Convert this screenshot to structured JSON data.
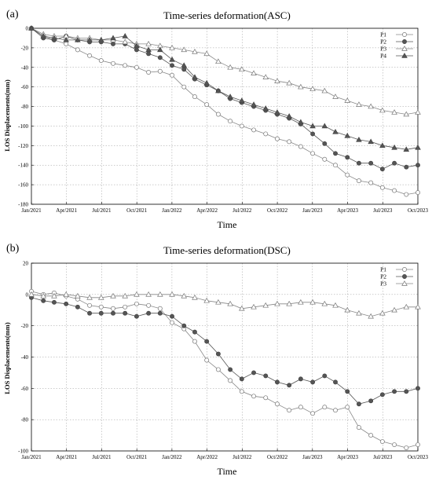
{
  "chart_data": [
    {
      "type": "line",
      "panel": "(a)",
      "title": "Time-series deformation(ASC)",
      "xlabel": "Time",
      "ylabel": "LOS Displacements(mm)",
      "ylim": [
        -180,
        0
      ],
      "yticks": [
        0,
        -20,
        -40,
        -60,
        -80,
        -100,
        -120,
        -140,
        -160,
        -180
      ],
      "xlim": [
        "2021-01-01",
        "2023-10-01"
      ],
      "xticks": [
        "Jan/2021",
        "Apr/2021",
        "Jul/2021",
        "Oct/2021",
        "Jan/2022",
        "Apr/2022",
        "Jul/2022",
        "Oct/2022",
        "Jan/2023",
        "Apr/2023",
        "Jul/2023",
        "Oct/2023"
      ],
      "grid": true,
      "legend": "top-right",
      "series": [
        {
          "name": "P1",
          "marker": "open-circle",
          "x": [
            "2021-01-01",
            "2021-02-01",
            "2021-03-01",
            "2021-04-01",
            "2021-05-01",
            "2021-06-01",
            "2021-07-01",
            "2021-08-01",
            "2021-09-01",
            "2021-10-01",
            "2021-11-01",
            "2021-12-01",
            "2022-01-01",
            "2022-02-01",
            "2022-03-01",
            "2022-04-01",
            "2022-05-01",
            "2022-06-01",
            "2022-07-01",
            "2022-08-01",
            "2022-09-01",
            "2022-10-01",
            "2022-11-01",
            "2022-12-01",
            "2023-01-01",
            "2023-02-01",
            "2023-03-01",
            "2023-04-01",
            "2023-05-01",
            "2023-06-01",
            "2023-07-01",
            "2023-08-01",
            "2023-09-01",
            "2023-10-01"
          ],
          "y": [
            0,
            -8,
            -12,
            -16,
            -22,
            -28,
            -33,
            -36,
            -38,
            -40,
            -45,
            -44,
            -48,
            -60,
            -70,
            -78,
            -88,
            -95,
            -100,
            -104,
            -108,
            -113,
            -116,
            -121,
            -128,
            -134,
            -140,
            -150,
            -156,
            -158,
            -163,
            -166,
            -170,
            -168
          ]
        },
        {
          "name": "P2",
          "marker": "filled-circle",
          "x": [
            "2021-01-01",
            "2021-02-01",
            "2021-03-01",
            "2021-04-01",
            "2021-05-01",
            "2021-06-01",
            "2021-07-01",
            "2021-08-01",
            "2021-09-01",
            "2021-10-01",
            "2021-11-01",
            "2021-12-01",
            "2022-01-01",
            "2022-02-01",
            "2022-03-01",
            "2022-04-01",
            "2022-05-01",
            "2022-06-01",
            "2022-07-01",
            "2022-08-01",
            "2022-09-01",
            "2022-10-01",
            "2022-11-01",
            "2022-12-01",
            "2023-01-01",
            "2023-02-01",
            "2023-03-01",
            "2023-04-01",
            "2023-05-01",
            "2023-06-01",
            "2023-07-01",
            "2023-08-01",
            "2023-09-01",
            "2023-10-01"
          ],
          "y": [
            0,
            -10,
            -12,
            -8,
            -12,
            -14,
            -14,
            -16,
            -16,
            -22,
            -26,
            -30,
            -38,
            -42,
            -52,
            -58,
            -64,
            -72,
            -76,
            -80,
            -84,
            -88,
            -92,
            -98,
            -108,
            -118,
            -128,
            -132,
            -138,
            -138,
            -144,
            -138,
            -142,
            -140
          ]
        },
        {
          "name": "P3",
          "marker": "open-triangle",
          "x": [
            "2021-01-01",
            "2021-02-01",
            "2021-03-01",
            "2021-04-01",
            "2021-05-01",
            "2021-06-01",
            "2021-07-01",
            "2021-08-01",
            "2021-09-01",
            "2021-10-01",
            "2021-11-01",
            "2021-12-01",
            "2022-01-01",
            "2022-02-01",
            "2022-03-01",
            "2022-04-01",
            "2022-05-01",
            "2022-06-01",
            "2022-07-01",
            "2022-08-01",
            "2022-09-01",
            "2022-10-01",
            "2022-11-01",
            "2022-12-01",
            "2023-01-01",
            "2023-02-01",
            "2023-03-01",
            "2023-04-01",
            "2023-05-01",
            "2023-06-01",
            "2023-07-01",
            "2023-08-01",
            "2023-09-01",
            "2023-10-01"
          ],
          "y": [
            0,
            -6,
            -8,
            -8,
            -10,
            -10,
            -12,
            -12,
            -14,
            -16,
            -16,
            -18,
            -20,
            -22,
            -24,
            -26,
            -34,
            -40,
            -42,
            -46,
            -50,
            -54,
            -56,
            -60,
            -62,
            -64,
            -70,
            -74,
            -78,
            -80,
            -84,
            -86,
            -88,
            -86
          ]
        },
        {
          "name": "P4",
          "marker": "filled-triangle",
          "x": [
            "2021-01-01",
            "2021-02-01",
            "2021-03-01",
            "2021-04-01",
            "2021-05-01",
            "2021-06-01",
            "2021-07-01",
            "2021-08-01",
            "2021-09-01",
            "2021-10-01",
            "2021-11-01",
            "2021-12-01",
            "2022-01-01",
            "2022-02-01",
            "2022-03-01",
            "2022-04-01",
            "2022-05-01",
            "2022-06-01",
            "2022-07-01",
            "2022-08-01",
            "2022-09-01",
            "2022-10-01",
            "2022-11-01",
            "2022-12-01",
            "2023-01-01",
            "2023-02-01",
            "2023-03-01",
            "2023-04-01",
            "2023-05-01",
            "2023-06-01",
            "2023-07-01",
            "2023-08-01",
            "2023-09-01",
            "2023-10-01"
          ],
          "y": [
            0,
            -8,
            -10,
            -12,
            -12,
            -12,
            -12,
            -10,
            -8,
            -18,
            -22,
            -22,
            -32,
            -38,
            -50,
            -56,
            -64,
            -70,
            -74,
            -78,
            -82,
            -86,
            -90,
            -96,
            -100,
            -100,
            -106,
            -110,
            -114,
            -116,
            -120,
            -122,
            -124,
            -122
          ]
        }
      ]
    },
    {
      "type": "line",
      "panel": "(b)",
      "title": "Time-series deformation(DSC)",
      "xlabel": "Time",
      "ylabel": "LOS Displacements(mm)",
      "ylim": [
        -100,
        20
      ],
      "yticks": [
        20,
        0,
        -20,
        -40,
        -60,
        -80,
        -100
      ],
      "xlim": [
        "2021-01-01",
        "2023-10-01"
      ],
      "xticks": [
        "Jan/2021",
        "Apr/2021",
        "Jul/2021",
        "Oct/2021",
        "Jan/2022",
        "Apr/2022",
        "Jul/2022",
        "Oct/2022",
        "Jan/2023",
        "Apr/2023",
        "Jul/2023",
        "Oct/2023"
      ],
      "grid": true,
      "legend": "top-right",
      "series": [
        {
          "name": "P1",
          "marker": "open-circle",
          "x": [
            "2021-01-01",
            "2021-02-01",
            "2021-03-01",
            "2021-04-01",
            "2021-05-01",
            "2021-06-01",
            "2021-07-01",
            "2021-08-01",
            "2021-09-01",
            "2021-10-01",
            "2021-11-01",
            "2021-12-01",
            "2022-01-01",
            "2022-02-01",
            "2022-03-01",
            "2022-04-01",
            "2022-05-01",
            "2022-06-01",
            "2022-07-01",
            "2022-08-01",
            "2022-09-01",
            "2022-10-01",
            "2022-11-01",
            "2022-12-01",
            "2023-01-01",
            "2023-02-01",
            "2023-03-01",
            "2023-04-01",
            "2023-05-01",
            "2023-06-01",
            "2023-07-01",
            "2023-08-01",
            "2023-09-01",
            "2023-10-01"
          ],
          "y": [
            2,
            0,
            1,
            -1,
            -3,
            -7,
            -8,
            -9,
            -8,
            -6,
            -7,
            -9,
            -18,
            -22,
            -30,
            -42,
            -48,
            -55,
            -62,
            -65,
            -66,
            -70,
            -74,
            -72,
            -76,
            -72,
            -74,
            -72,
            -85,
            -90,
            -94,
            -96,
            -98,
            -96
          ]
        },
        {
          "name": "P2",
          "marker": "filled-circle",
          "x": [
            "2021-01-01",
            "2021-02-01",
            "2021-03-01",
            "2021-04-01",
            "2021-05-01",
            "2021-06-01",
            "2021-07-01",
            "2021-08-01",
            "2021-09-01",
            "2021-10-01",
            "2021-11-01",
            "2021-12-01",
            "2022-01-01",
            "2022-02-01",
            "2022-03-01",
            "2022-04-01",
            "2022-05-01",
            "2022-06-01",
            "2022-07-01",
            "2022-08-01",
            "2022-09-01",
            "2022-10-01",
            "2022-11-01",
            "2022-12-01",
            "2023-01-01",
            "2023-02-01",
            "2023-03-01",
            "2023-04-01",
            "2023-05-01",
            "2023-06-01",
            "2023-07-01",
            "2023-08-01",
            "2023-09-01",
            "2023-10-01"
          ],
          "y": [
            -2,
            -4,
            -5,
            -6,
            -8,
            -12,
            -12,
            -12,
            -12,
            -14,
            -12,
            -12,
            -14,
            -20,
            -24,
            -30,
            -38,
            -48,
            -54,
            -50,
            -52,
            -56,
            -58,
            -54,
            -56,
            -52,
            -56,
            -62,
            -70,
            -68,
            -64,
            -62,
            -62,
            -60
          ]
        },
        {
          "name": "P3",
          "marker": "open-triangle",
          "x": [
            "2021-01-01",
            "2021-02-01",
            "2021-03-01",
            "2021-04-01",
            "2021-05-01",
            "2021-06-01",
            "2021-07-01",
            "2021-08-01",
            "2021-09-01",
            "2021-10-01",
            "2021-11-01",
            "2021-12-01",
            "2022-01-01",
            "2022-02-01",
            "2022-03-01",
            "2022-04-01",
            "2022-05-01",
            "2022-06-01",
            "2022-07-01",
            "2022-08-01",
            "2022-09-01",
            "2022-10-01",
            "2022-11-01",
            "2022-12-01",
            "2023-01-01",
            "2023-02-01",
            "2023-03-01",
            "2023-04-01",
            "2023-05-01",
            "2023-06-01",
            "2023-07-01",
            "2023-08-01",
            "2023-09-01",
            "2023-10-01"
          ],
          "y": [
            0,
            -1,
            -1,
            0,
            -1,
            -2,
            -2,
            -1,
            -1,
            0,
            0,
            0,
            0,
            -1,
            -2,
            -4,
            -5,
            -6,
            -9,
            -8,
            -7,
            -6,
            -6,
            -5,
            -5,
            -6,
            -7,
            -10,
            -12,
            -14,
            -12,
            -10,
            -8,
            -8
          ]
        }
      ]
    }
  ]
}
